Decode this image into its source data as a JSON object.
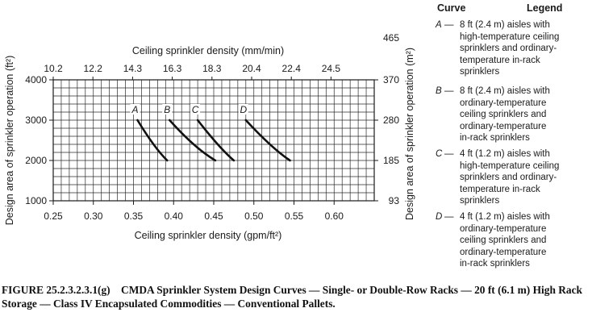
{
  "chart_data": {
    "type": "line",
    "title": "",
    "xlabel": "Ceiling sprinkler density (gpm/ft²)",
    "ylabel": "Design area of sprinkler operation (ft²)",
    "x2label": "Ceiling sprinkler density (mm/min)",
    "y2label": "Design area of sprinkler operation (m²)",
    "xlim": [
      0.25,
      0.65
    ],
    "ylim": [
      1000,
      4000
    ],
    "xticks": [
      "0.25",
      "0.30",
      "0.35",
      "0.40",
      "0.45",
      "0.50",
      "0.55",
      "0.60"
    ],
    "yticks": [
      "1000",
      "2000",
      "3000",
      "4000"
    ],
    "x2ticks": [
      "10.2",
      "12.2",
      "14.3",
      "16.3",
      "18.3",
      "20.4",
      "22.4",
      "24.5"
    ],
    "y2ticks": [
      "93",
      "185",
      "280",
      "370",
      "465"
    ],
    "grid": true,
    "series": [
      {
        "name": "A",
        "x": [
          0.355,
          0.375,
          0.392
        ],
        "y": [
          3000,
          2400,
          2000
        ]
      },
      {
        "name": "B",
        "x": [
          0.395,
          0.425,
          0.452
        ],
        "y": [
          3000,
          2400,
          2000
        ]
      },
      {
        "name": "C",
        "x": [
          0.43,
          0.455,
          0.475
        ],
        "y": [
          3000,
          2400,
          2000
        ]
      },
      {
        "name": "D",
        "x": [
          0.49,
          0.52,
          0.545
        ],
        "y": [
          3000,
          2400,
          2000
        ]
      }
    ]
  },
  "legend": {
    "header_curve": "Curve",
    "header_legend": "Legend",
    "dash": "—",
    "entries": [
      {
        "letter": "A",
        "lines": [
          "8 ft (2.4 m) aisles with",
          "high-temperature ceiling",
          "sprinklers and ordinary-",
          "temperature in-rack",
          "sprinklers"
        ]
      },
      {
        "letter": "B",
        "lines": [
          "8 ft (2.4 m) aisles with",
          "ordinary-temperature",
          "ceiling sprinklers and",
          "ordinary-temperature",
          "in-rack sprinklers"
        ]
      },
      {
        "letter": "C",
        "lines": [
          "4 ft (1.2 m) aisles with",
          "high-temperature ceiling",
          "sprinklers and ordinary-",
          "temperature in-rack",
          "sprinklers"
        ]
      },
      {
        "letter": "D",
        "lines": [
          "4 ft (1.2 m) aisles with",
          "ordinary-temperature",
          "ceiling sprinklers and",
          "ordinary-temperature",
          "in-rack sprinklers"
        ]
      }
    ]
  },
  "caption": {
    "label": "FIGURE 25.2.3.2.3.1(g)",
    "text": "CMDA Sprinkler System Design Curves — Single- or Double-Row Racks — 20 ft (6.1 m) High Rack Storage — Class IV Encapsulated Commodities — Conventional Pallets."
  }
}
